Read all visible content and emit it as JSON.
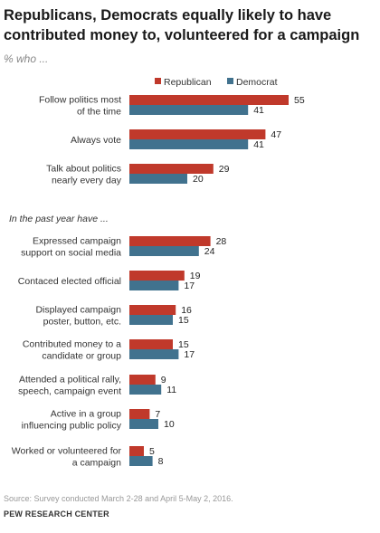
{
  "title": "Republicans, Democrats equally likely to have contributed money to, volunteered for a campaign",
  "subtitle": "% who ...",
  "source": "Source: Survey conducted March 2-28 and April 5-May 2, 2016.",
  "credit": "PEW RESEARCH CENTER",
  "colors": {
    "republican": "#c0392b",
    "democrat": "#41728e"
  },
  "chart_data": {
    "type": "bar",
    "orientation": "horizontal",
    "section_label": "In the past year have ...",
    "categories": [
      [
        "Follow politics most",
        "of the time"
      ],
      [
        "Always vote"
      ],
      [
        "Talk about politics",
        "nearly every day"
      ],
      [
        "Expressed campaign",
        "support on social media"
      ],
      [
        "Contaced elected official"
      ],
      [
        "Displayed campaign",
        "poster, button, etc."
      ],
      [
        "Contributed money to a",
        "candidate or group"
      ],
      [
        "Attended a political rally,",
        "speech, campaign event"
      ],
      [
        "Active in a group",
        "influencing public policy"
      ],
      [
        "Worked or volunteered for",
        "a campaign"
      ]
    ],
    "series": [
      {
        "name": "Republican",
        "values": [
          55,
          47,
          29,
          28,
          19,
          16,
          15,
          9,
          7,
          5
        ]
      },
      {
        "name": "Democrat",
        "values": [
          41,
          41,
          20,
          24,
          17,
          15,
          17,
          11,
          10,
          8
        ]
      }
    ],
    "xlim": [
      0,
      55
    ],
    "legend": "top"
  }
}
